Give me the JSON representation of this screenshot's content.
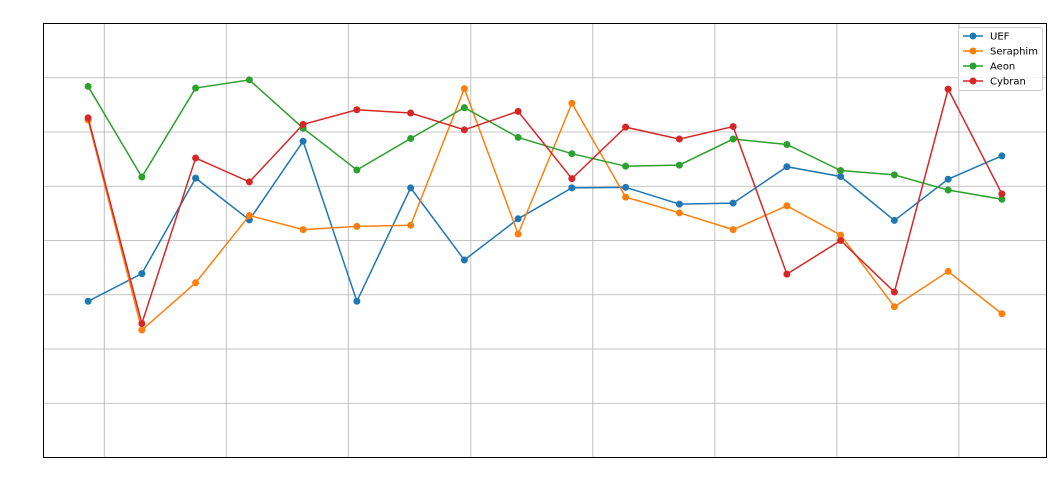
{
  "chart_data": {
    "type": "line",
    "title": "",
    "xlabel": "",
    "ylabel": "",
    "grid": true,
    "legend_position": "top-right",
    "x": [
      0,
      1,
      2,
      3,
      4,
      5,
      6,
      7,
      8,
      9,
      10,
      11,
      12,
      13,
      14,
      15,
      16,
      17
    ],
    "xlim": [
      -0.83,
      17.83
    ],
    "ylim": [
      0,
      8
    ],
    "x_gridlines": [
      0.3,
      2.57,
      4.84,
      7.12,
      9.39,
      11.66,
      13.93,
      16.2
    ],
    "y_gridlines": [
      1,
      2,
      3,
      4,
      5,
      6,
      7
    ],
    "series": [
      {
        "name": "UEF",
        "color": "#1f77b4",
        "values": [
          2.88,
          3.39,
          5.15,
          4.38,
          5.83,
          2.88,
          4.97,
          3.64,
          4.4,
          4.97,
          4.98,
          4.67,
          4.69,
          5.36,
          5.18,
          4.37,
          5.13,
          5.56
        ]
      },
      {
        "name": "Seraphim",
        "color": "#ff7f0e",
        "values": [
          6.22,
          2.35,
          3.22,
          4.46,
          4.2,
          4.26,
          4.28,
          6.8,
          4.12,
          6.53,
          4.8,
          4.51,
          4.2,
          4.64,
          4.1,
          2.78,
          3.43,
          2.65
        ]
      },
      {
        "name": "Aeon",
        "color": "#2ca02c",
        "values": [
          6.84,
          5.17,
          6.81,
          6.96,
          6.07,
          5.3,
          5.88,
          6.45,
          5.9,
          5.6,
          5.37,
          5.39,
          5.87,
          5.77,
          5.29,
          5.21,
          4.93,
          4.76
        ]
      },
      {
        "name": "Cybran",
        "color": "#d62728",
        "values": [
          6.26,
          2.47,
          5.52,
          5.08,
          6.14,
          6.41,
          6.35,
          6.04,
          6.38,
          5.14,
          6.09,
          5.87,
          6.1,
          3.38,
          4.0,
          3.05,
          6.79,
          4.86
        ]
      }
    ]
  }
}
